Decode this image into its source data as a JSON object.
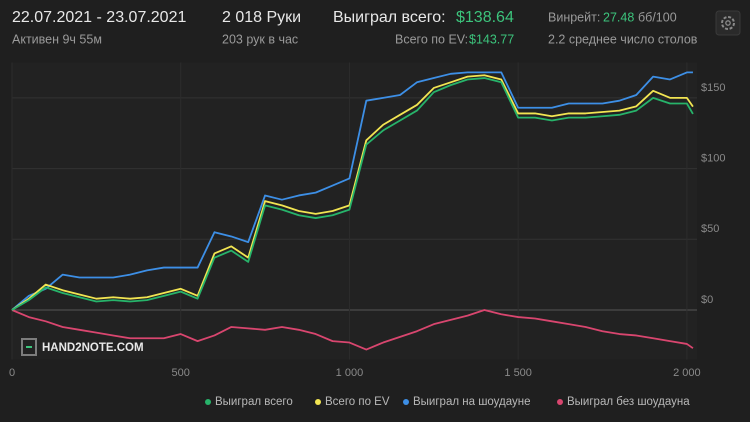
{
  "header": {
    "date_range": "22.07.2021 - 23.07.2021",
    "active": "Активен 9ч 55м",
    "hands": "2 018 Руки",
    "hands_per_hour": "203 рук в час",
    "won_label": "Выиграл всего:",
    "won_value": "$138.64",
    "ev_label": "Всего по EV:",
    "ev_value": "$143.77",
    "winrate_label": "Винрейт:",
    "winrate_value": "27.48",
    "winrate_unit": "бб/100",
    "tables": "2.2 среднее число столов"
  },
  "chart_data": {
    "type": "line",
    "watermark": "HAND2NOTE.COM",
    "grid": true,
    "x": [
      0,
      50,
      100,
      150,
      200,
      250,
      300,
      350,
      400,
      450,
      500,
      550,
      600,
      650,
      700,
      750,
      800,
      850,
      900,
      950,
      1000,
      1050,
      1100,
      1150,
      1200,
      1250,
      1300,
      1350,
      1400,
      1450,
      1500,
      1550,
      1600,
      1650,
      1700,
      1750,
      1800,
      1850,
      1900,
      1950,
      2000,
      2018
    ],
    "xlim": [
      0,
      2030
    ],
    "xticks": [
      0,
      500,
      {
        "value": 1000,
        "label": "1 000"
      },
      {
        "value": 1500,
        "label": "1 500"
      },
      {
        "value": 2000,
        "label": "2 000"
      }
    ],
    "ylim": [
      -35,
      175
    ],
    "yticks": [
      {
        "value": 0,
        "label": "$0"
      },
      {
        "value": 50,
        "label": "$50"
      },
      {
        "value": 100,
        "label": "$100"
      },
      {
        "value": 150,
        "label": "$150"
      }
    ],
    "series": [
      {
        "name": "Выиграл всего",
        "color": "#27b36a",
        "values": [
          0,
          7,
          16,
          12,
          9,
          6,
          7,
          6,
          7,
          10,
          13,
          8,
          37,
          42,
          34,
          74,
          71,
          67,
          65,
          67,
          71,
          117,
          127,
          134,
          141,
          154,
          159,
          163,
          164,
          161,
          136,
          136,
          134,
          136,
          136,
          137,
          138,
          141,
          150,
          146,
          146,
          138.64
        ]
      },
      {
        "name": "Всего по EV",
        "color": "#f2e552",
        "values": [
          0,
          8,
          18,
          14,
          11,
          8,
          9,
          8,
          9,
          12,
          15,
          10,
          40,
          45,
          37,
          77,
          74,
          70,
          68,
          70,
          74,
          120,
          131,
          138,
          145,
          157,
          161,
          165,
          166,
          163,
          139,
          139,
          137,
          139,
          139,
          140,
          141,
          144,
          155,
          150,
          150,
          143.77
        ]
      },
      {
        "name": "Выиграл на шоудауне",
        "color": "#3d8fe6",
        "values": [
          0,
          10,
          15,
          25,
          23,
          23,
          23,
          25,
          28,
          30,
          30,
          30,
          55,
          52,
          48,
          81,
          78,
          81,
          83,
          88,
          93,
          148,
          150,
          152,
          161,
          164,
          167,
          168,
          168,
          168,
          143,
          143,
          143,
          146,
          146,
          146,
          148,
          152,
          165,
          163,
          168,
          168
        ]
      },
      {
        "name": "Выиграл без шоудауна",
        "color": "#d9466f",
        "values": [
          0,
          -5,
          -8,
          -12,
          -14,
          -16,
          -18,
          -20,
          -20,
          -20,
          -17,
          -22,
          -18,
          -12,
          -13,
          -14,
          -12,
          -14,
          -17,
          -22,
          -23,
          -28,
          -23,
          -19,
          -15,
          -10,
          -7,
          -4,
          0,
          -3,
          -5,
          -6,
          -8,
          -10,
          -12,
          -15,
          -17,
          -18,
          -20,
          -22,
          -24,
          -27
        ]
      }
    ]
  }
}
